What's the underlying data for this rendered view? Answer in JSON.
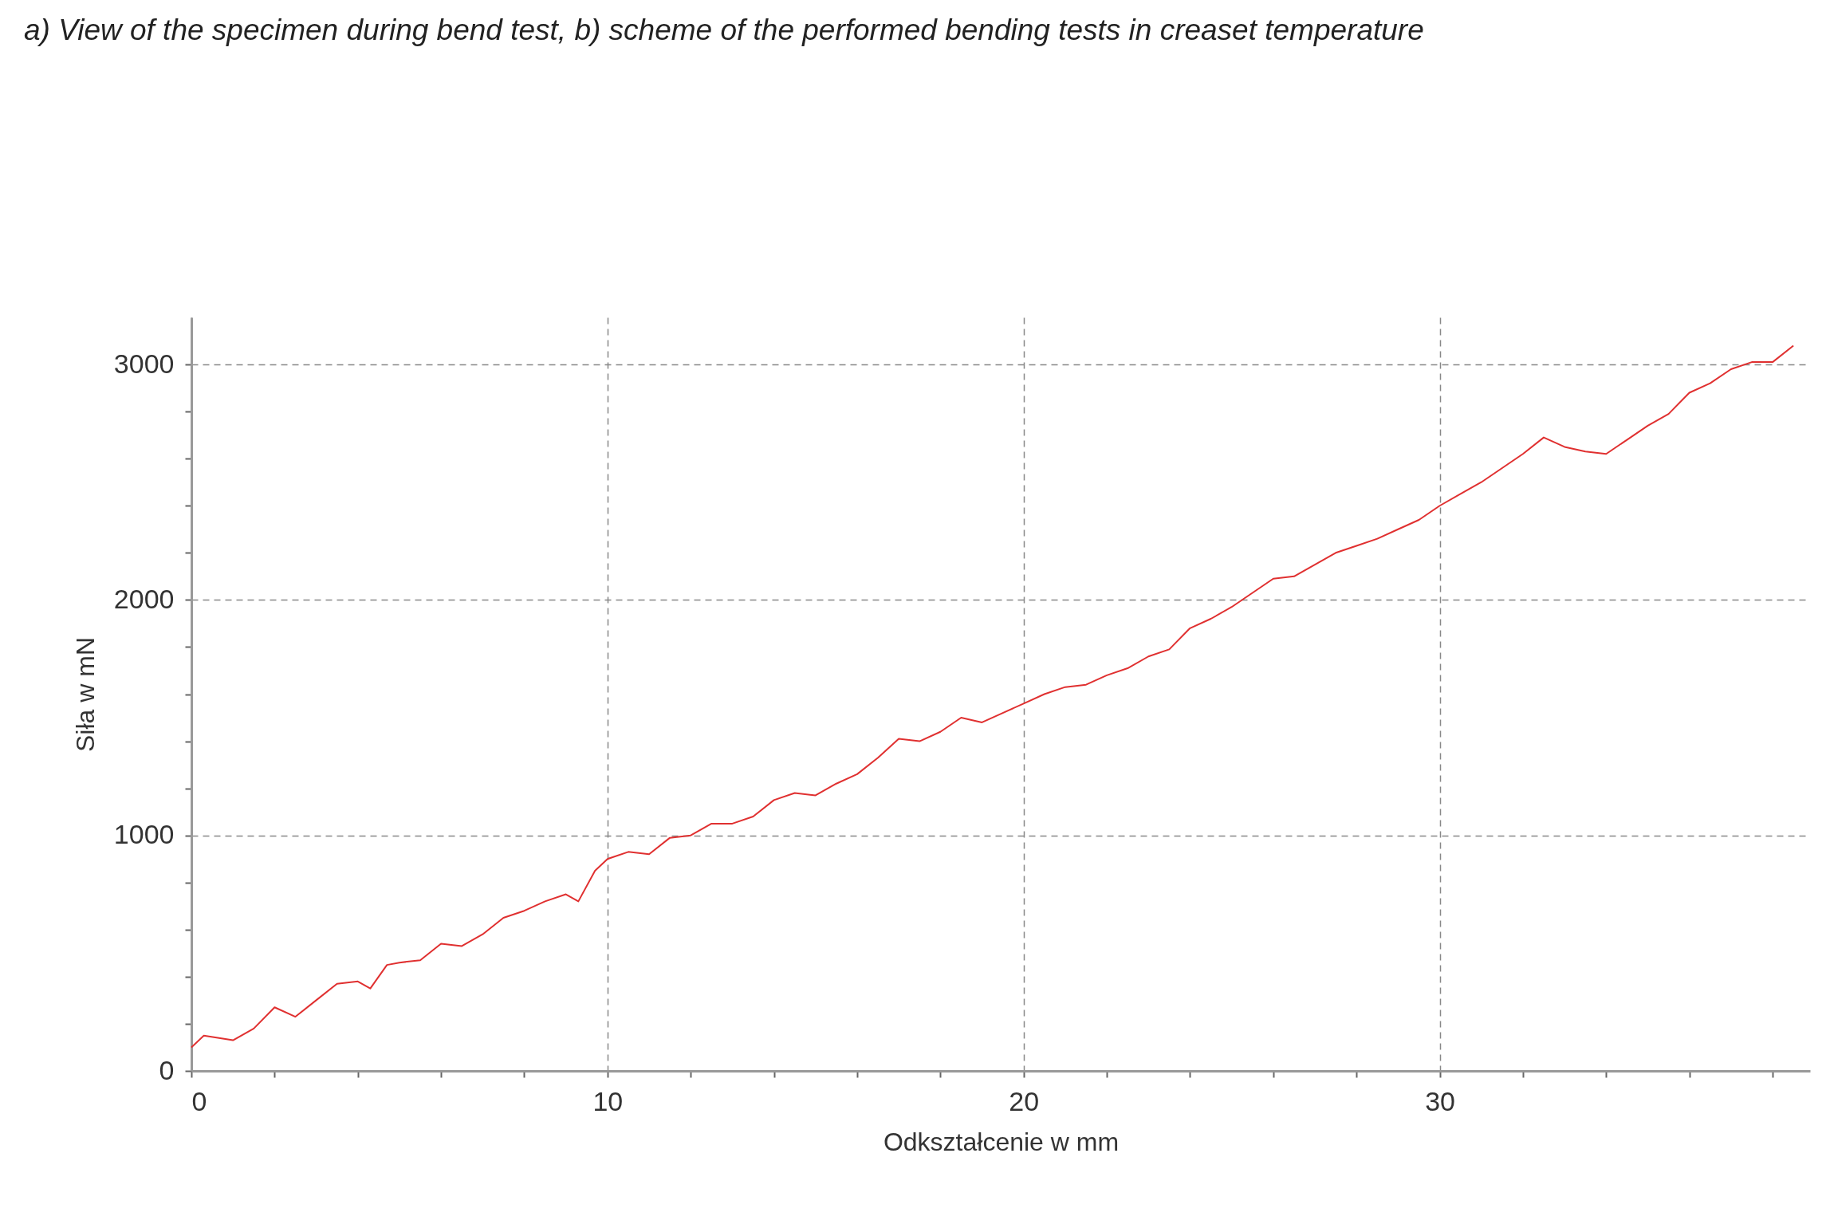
{
  "chart_data": {
    "type": "line",
    "title": "a) View of the specimen during bend test, b) scheme of the performed bending tests in creaset temperature",
    "xlabel": "Odkształcenie w mm",
    "ylabel": "Siła w mN",
    "color": "#e03030",
    "grid": true,
    "marker": "none",
    "line_style": "solid",
    "xlim": [
      0,
      38.9
    ],
    "ylim": [
      0,
      3200
    ],
    "xticks": [
      0,
      {
        "value": 2,
        "label": null
      },
      {
        "value": 4,
        "label": null
      },
      {
        "value": 6,
        "label": null
      },
      {
        "value": 8,
        "label": null
      },
      10,
      {
        "value": 12,
        "label": null
      },
      {
        "value": 14,
        "label": null
      },
      {
        "value": 16,
        "label": null
      },
      {
        "value": 18,
        "label": null
      },
      20,
      {
        "value": 22,
        "label": null
      },
      {
        "value": 24,
        "label": null
      },
      {
        "value": 26,
        "label": null
      },
      {
        "value": 28,
        "label": null
      },
      30,
      {
        "value": 32,
        "label": null
      },
      {
        "value": 34,
        "label": null
      },
      {
        "value": 36,
        "label": null
      },
      {
        "value": 38,
        "label": null
      }
    ],
    "yticks": [
      0,
      {
        "value": 200,
        "label": null
      },
      {
        "value": 400,
        "label": null
      },
      {
        "value": 600,
        "label": null
      },
      {
        "value": 800,
        "label": null
      },
      1000,
      {
        "value": 1200,
        "label": null
      },
      {
        "value": 1400,
        "label": null
      },
      {
        "value": 1600,
        "label": null
      },
      {
        "value": 1800,
        "label": null
      },
      2000,
      {
        "value": 2200,
        "label": null
      },
      {
        "value": 2400,
        "label": null
      },
      {
        "value": 2600,
        "label": null
      },
      {
        "value": 2800,
        "label": null
      },
      3000
    ],
    "x": [
      0,
      0.3,
      1,
      1.5,
      2,
      2.5,
      3,
      3.5,
      4,
      4.3,
      4.7,
      5,
      5.5,
      6,
      6.5,
      7,
      7.5,
      8,
      8.5,
      9,
      9.3,
      9.7,
      10,
      10.5,
      11,
      11.5,
      12,
      12.5,
      13,
      13.5,
      14,
      14.5,
      15,
      15.5,
      16,
      16.5,
      17,
      17.5,
      18,
      18.5,
      19,
      19.5,
      20,
      20.5,
      21,
      21.5,
      22,
      22.5,
      23,
      23.5,
      24,
      24.5,
      25,
      25.5,
      26,
      26.5,
      27,
      27.5,
      28,
      28.5,
      29,
      29.5,
      30,
      30.5,
      31,
      31.5,
      32,
      32.5,
      33,
      33.5,
      34,
      34.5,
      35,
      35.5,
      36,
      36.5,
      37,
      37.5,
      38,
      38.5
    ],
    "values": [
      100,
      150,
      130,
      180,
      270,
      230,
      300,
      370,
      380,
      350,
      450,
      460,
      470,
      540,
      530,
      580,
      650,
      680,
      720,
      750,
      720,
      850,
      900,
      930,
      920,
      990,
      1000,
      1050,
      1050,
      1080,
      1150,
      1180,
      1170,
      1220,
      1260,
      1330,
      1410,
      1400,
      1440,
      1500,
      1480,
      1520,
      1560,
      1600,
      1630,
      1640,
      1680,
      1710,
      1760,
      1790,
      1880,
      1920,
      1970,
      2030,
      2090,
      2100,
      2150,
      2200,
      2230,
      2260,
      2300,
      2340,
      2400,
      2450,
      2500,
      2560,
      2620,
      2690,
      2650,
      2630,
      2620,
      2680,
      2740,
      2790,
      2880,
      2920,
      2980,
      3010,
      3010,
      3080
    ]
  }
}
